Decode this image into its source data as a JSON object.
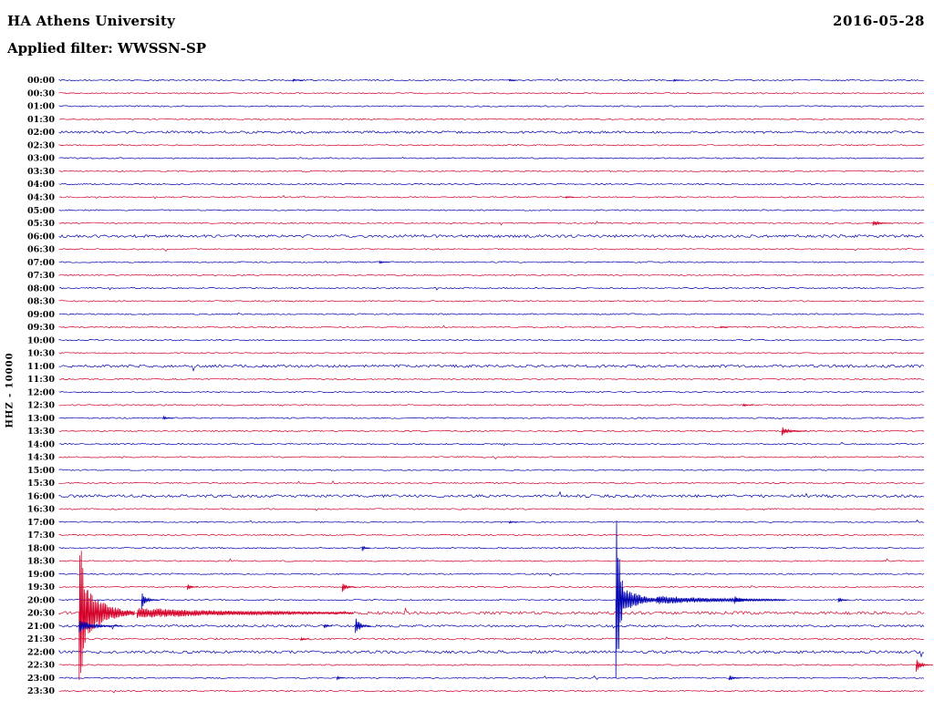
{
  "header": {
    "station_title": "HA Athens University",
    "date": "2016-05-28",
    "filter_label": "Applied filter: WWSSN-SP"
  },
  "y_axis_label": "HHZ - 10000",
  "colors": {
    "background": "#FFFFFF",
    "text": "#000000",
    "trace_blue": "#0000B0",
    "trace_red": "#D40029"
  },
  "chart_data": {
    "type": "line",
    "subtype": "helicorder-seismogram",
    "title": "HA Athens University",
    "date": "2016-05-28",
    "filter": "WWSSN-SP",
    "channel_scale": "HHZ - 10000",
    "row_duration_minutes": 30,
    "legend": "none",
    "grid": false,
    "noise_amp_default": 0.7,
    "row_noise_overrides": {
      "02:00": 1.3,
      "06:00": 1.5,
      "11:00": 1.5,
      "16:00": 1.5,
      "20:30": 1.6,
      "21:00": 1.2,
      "21:30": 1.0,
      "22:00": 1.5
    },
    "rows": [
      {
        "time": "00:00",
        "color": "blue"
      },
      {
        "time": "00:30",
        "color": "red"
      },
      {
        "time": "01:00",
        "color": "blue"
      },
      {
        "time": "01:30",
        "color": "red"
      },
      {
        "time": "02:00",
        "color": "blue"
      },
      {
        "time": "02:30",
        "color": "red"
      },
      {
        "time": "03:00",
        "color": "blue"
      },
      {
        "time": "03:30",
        "color": "red"
      },
      {
        "time": "04:00",
        "color": "blue"
      },
      {
        "time": "04:30",
        "color": "red"
      },
      {
        "time": "05:00",
        "color": "blue"
      },
      {
        "time": "05:30",
        "color": "red"
      },
      {
        "time": "06:00",
        "color": "blue"
      },
      {
        "time": "06:30",
        "color": "red"
      },
      {
        "time": "07:00",
        "color": "blue"
      },
      {
        "time": "07:30",
        "color": "red"
      },
      {
        "time": "08:00",
        "color": "blue"
      },
      {
        "time": "08:30",
        "color": "red"
      },
      {
        "time": "09:00",
        "color": "blue"
      },
      {
        "time": "09:30",
        "color": "red"
      },
      {
        "time": "10:00",
        "color": "blue"
      },
      {
        "time": "10:30",
        "color": "red"
      },
      {
        "time": "11:00",
        "color": "blue"
      },
      {
        "time": "11:30",
        "color": "red"
      },
      {
        "time": "12:00",
        "color": "blue"
      },
      {
        "time": "12:30",
        "color": "red"
      },
      {
        "time": "13:00",
        "color": "blue"
      },
      {
        "time": "13:30",
        "color": "red"
      },
      {
        "time": "14:00",
        "color": "blue"
      },
      {
        "time": "14:30",
        "color": "red"
      },
      {
        "time": "15:00",
        "color": "blue"
      },
      {
        "time": "15:30",
        "color": "red"
      },
      {
        "time": "16:00",
        "color": "blue"
      },
      {
        "time": "16:30",
        "color": "red"
      },
      {
        "time": "17:00",
        "color": "blue"
      },
      {
        "time": "17:30",
        "color": "red"
      },
      {
        "time": "18:00",
        "color": "blue"
      },
      {
        "time": "18:30",
        "color": "red"
      },
      {
        "time": "19:00",
        "color": "blue"
      },
      {
        "time": "19:30",
        "color": "red"
      },
      {
        "time": "20:00",
        "color": "blue"
      },
      {
        "time": "20:30",
        "color": "red"
      },
      {
        "time": "21:00",
        "color": "blue"
      },
      {
        "time": "21:30",
        "color": "red"
      },
      {
        "time": "22:00",
        "color": "blue"
      },
      {
        "time": "22:30",
        "color": "red"
      },
      {
        "time": "23:00",
        "color": "blue"
      },
      {
        "time": "23:30",
        "color": "red"
      }
    ],
    "events": [
      {
        "row": "00:00",
        "t": 0.27,
        "amp": 1.6,
        "dur": 0.012
      },
      {
        "row": "00:00",
        "t": 0.52,
        "amp": 1.5,
        "dur": 0.01
      },
      {
        "row": "00:00",
        "t": 0.71,
        "amp": 1.6,
        "dur": 0.012
      },
      {
        "row": "04:30",
        "t": 0.585,
        "amp": 1.6,
        "dur": 0.01
      },
      {
        "row": "05:30",
        "t": 0.94,
        "amp": 4,
        "dur": 0.022
      },
      {
        "row": "07:00",
        "t": 0.37,
        "amp": 1.8,
        "dur": 0.012
      },
      {
        "row": "09:30",
        "t": 0.764,
        "amp": 1.6,
        "dur": 0.01
      },
      {
        "row": "12:30",
        "t": 0.79,
        "amp": 1.8,
        "dur": 0.012
      },
      {
        "row": "13:00",
        "t": 0.12,
        "amp": 2.5,
        "dur": 0.012
      },
      {
        "row": "13:30",
        "t": 0.835,
        "amp": 5,
        "dur": 0.028
      },
      {
        "row": "17:00",
        "t": 0.52,
        "amp": 1.6,
        "dur": 0.01
      },
      {
        "row": "18:00",
        "t": 0.35,
        "amp": 3.5,
        "dur": 0.01
      },
      {
        "row": "19:30",
        "t": 0.148,
        "amp": 4,
        "dur": 0.012
      },
      {
        "row": "19:30",
        "t": 0.327,
        "amp": 6,
        "dur": 0.016
      },
      {
        "row": "20:00",
        "t": 0.095,
        "amp": 10,
        "dur": 0.02
      },
      {
        "row": "20:00",
        "t": 0.643,
        "amp": 105,
        "dur": 0.008,
        "decay": 1.5
      },
      {
        "row": "20:00",
        "t": 0.65,
        "amp": 18,
        "dur": 0.045,
        "decay": 2.5
      },
      {
        "row": "20:00",
        "t": 0.69,
        "amp": 5,
        "dur": 0.15,
        "decay": 2
      },
      {
        "row": "20:00",
        "t": 0.78,
        "amp": 5,
        "dur": 0.022
      },
      {
        "row": "20:00",
        "t": 0.9,
        "amp": 3.5,
        "dur": 0.012
      },
      {
        "row": "20:30",
        "t": 0.023,
        "amp": 110,
        "dur": 0.01,
        "decay": 1.5
      },
      {
        "row": "20:30",
        "t": 0.032,
        "amp": 28,
        "dur": 0.055,
        "decay": 2.5
      },
      {
        "row": "20:30",
        "t": 0.09,
        "amp": 6,
        "dur": 0.25,
        "decay": 2
      },
      {
        "row": "21:00",
        "t": 0.023,
        "amp": 8,
        "dur": 0.05,
        "decay": 4
      },
      {
        "row": "21:00",
        "t": 0.306,
        "amp": 3,
        "dur": 0.01
      },
      {
        "row": "21:00",
        "t": 0.342,
        "amp": 12,
        "dur": 0.018
      },
      {
        "row": "21:30",
        "t": 0.279,
        "amp": 2.5,
        "dur": 0.01
      },
      {
        "row": "22:30",
        "t": 0.99,
        "amp": 8,
        "dur": 0.02
      },
      {
        "row": "23:00",
        "t": 0.321,
        "amp": 2.5,
        "dur": 0.01
      },
      {
        "row": "23:00",
        "t": 0.774,
        "amp": 4,
        "dur": 0.014
      }
    ]
  }
}
